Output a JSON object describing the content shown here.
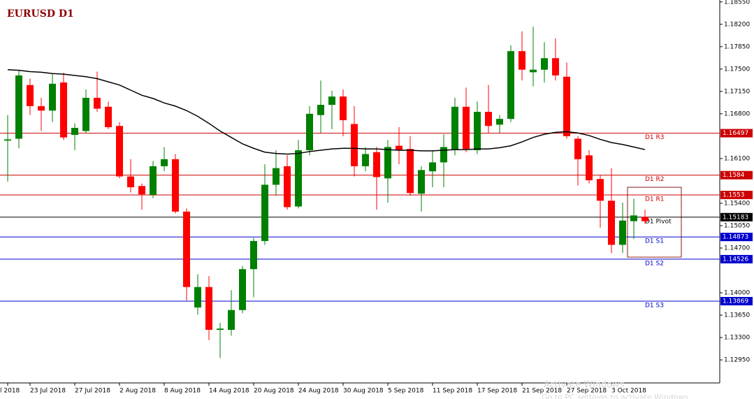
{
  "chart_data": {
    "type": "candlestick",
    "title": "EURUSD D1",
    "up_color": "#008000",
    "down_color": "#ff0000",
    "categories": [
      "l 2018",
      null,
      "23 Jul 2018",
      null,
      null,
      null,
      "27 Jul 2018",
      null,
      null,
      null,
      "2 Aug 2018",
      null,
      null,
      null,
      "8 Aug 2018",
      null,
      null,
      null,
      "14 Aug 2018",
      null,
      null,
      null,
      "20 Aug 2018",
      null,
      null,
      null,
      "24 Aug 2018",
      null,
      null,
      null,
      "30 Aug 2018",
      null,
      null,
      null,
      "5 Sep 2018",
      null,
      null,
      null,
      "11 Sep 2018",
      null,
      null,
      null,
      "17 Sep 2018",
      null,
      null,
      null,
      "21 Sep 2018",
      null,
      null,
      null,
      "27 Sep 2018",
      null,
      null,
      null,
      "3 Oct 2018",
      null,
      null,
      null
    ],
    "open": [
      1.1638,
      1.1641,
      1.1725,
      1.1692,
      1.1685,
      1.1729,
      1.1647,
      1.1653,
      1.1705,
      1.1691,
      1.1661,
      1.1582,
      1.1567,
      1.1553,
      1.1598,
      1.1609,
      1.1527,
      1.1377,
      1.1409,
      1.1342,
      1.1342,
      1.1373,
      1.1437,
      1.1481,
      1.1569,
      1.1598,
      1.1535,
      1.1623,
      1.1678,
      1.1694,
      1.1707,
      1.1664,
      1.1598,
      1.162,
      1.1579,
      1.163,
      1.1625,
      1.1555,
      1.159,
      1.1604,
      1.1623,
      1.1691,
      1.1623,
      1.1683,
      1.1663,
      1.1672,
      1.1778,
      1.1745,
      1.1749,
      1.1767,
      1.1738,
      1.1641,
      1.1615,
      1.1578,
      1.1544,
      1.1475,
      1.1512,
      1.1519
    ],
    "high": [
      1.1678,
      1.1749,
      1.1735,
      1.1705,
      1.1743,
      1.1744,
      1.1665,
      1.1718,
      1.1746,
      1.1699,
      1.1667,
      1.1609,
      1.1571,
      1.1606,
      1.1628,
      1.1617,
      1.1532,
      1.1429,
      1.1426,
      1.1353,
      1.1404,
      1.1442,
      1.1486,
      1.1601,
      1.1623,
      1.1615,
      1.1639,
      1.1692,
      1.1732,
      1.1716,
      1.1718,
      1.1692,
      1.1628,
      1.1628,
      1.1639,
      1.1659,
      1.1645,
      1.1598,
      1.1623,
      1.1648,
      1.1705,
      1.1721,
      1.1699,
      1.1725,
      1.1678,
      1.1787,
      1.1809,
      1.1816,
      1.1792,
      1.1798,
      1.176,
      1.1645,
      1.1623,
      1.1584,
      1.1595,
      1.1541,
      1.1547,
      1.153
    ],
    "low": [
      1.1574,
      1.1626,
      1.1678,
      1.1653,
      1.1667,
      1.1639,
      1.1623,
      1.165,
      1.1683,
      1.1656,
      1.1579,
      1.1557,
      1.153,
      1.1548,
      1.159,
      1.1524,
      1.1388,
      1.1366,
      1.1326,
      1.1298,
      1.1333,
      1.1368,
      1.1393,
      1.1475,
      1.1552,
      1.153,
      1.1532,
      1.1615,
      1.165,
      1.1656,
      1.1645,
      1.1582,
      1.159,
      1.153,
      1.1541,
      1.1601,
      1.1552,
      1.1527,
      1.1565,
      1.1565,
      1.1615,
      1.162,
      1.1617,
      1.165,
      1.165,
      1.1667,
      1.1732,
      1.1723,
      1.1729,
      1.1732,
      1.1641,
      1.1568,
      1.1571,
      1.1502,
      1.1462,
      1.1462,
      1.1484,
      1.1508
    ],
    "close": [
      1.164,
      1.174,
      1.1692,
      1.1685,
      1.1727,
      1.1643,
      1.1658,
      1.1705,
      1.1688,
      1.1659,
      1.1582,
      1.1565,
      1.1554,
      1.1598,
      1.1609,
      1.1527,
      1.1409,
      1.1409,
      1.1342,
      1.1344,
      1.1373,
      1.1437,
      1.1481,
      1.1569,
      1.1595,
      1.1534,
      1.1623,
      1.168,
      1.1694,
      1.1707,
      1.167,
      1.1598,
      1.1617,
      1.1581,
      1.1628,
      1.1623,
      1.1556,
      1.1592,
      1.1604,
      1.1628,
      1.1691,
      1.1625,
      1.1683,
      1.1661,
      1.1672,
      1.1778,
      1.1749,
      1.1749,
      1.1767,
      1.174,
      1.1645,
      1.1609,
      1.1576,
      1.1544,
      1.1475,
      1.1513,
      1.1521,
      1.1512
    ],
    "ma": {
      "color": "#000000",
      "values": [
        1.1749,
        1.1748,
        1.1746,
        1.1745,
        1.1743,
        1.1742,
        1.174,
        1.1738,
        1.1735,
        1.173,
        1.1725,
        1.1717,
        1.1709,
        1.1704,
        1.1697,
        1.1692,
        1.1685,
        1.1676,
        1.1665,
        1.1653,
        1.1643,
        1.1633,
        1.1626,
        1.162,
        1.1618,
        1.1617,
        1.1618,
        1.1621,
        1.1623,
        1.1625,
        1.1626,
        1.1626,
        1.1625,
        1.1625,
        1.1624,
        1.1623,
        1.1623,
        1.1622,
        1.1622,
        1.1623,
        1.1624,
        1.1624,
        1.1625,
        1.1625,
        1.1627,
        1.163,
        1.1636,
        1.1643,
        1.1648,
        1.1651,
        1.1652,
        1.165,
        1.1646,
        1.164,
        1.1635,
        1.1632,
        1.1628,
        1.1624
      ]
    },
    "levels": [
      {
        "name": "D1 R3",
        "value": 1.16497,
        "color": "#cc0000"
      },
      {
        "name": "D1 R2",
        "value": 1.1584,
        "color": "#cc0000"
      },
      {
        "name": "D1 R1",
        "value": 1.1553,
        "color": "#cc0000"
      },
      {
        "name": "D1 Pivot",
        "value": 1.15183,
        "color": "#000000"
      },
      {
        "name": "D1 S1",
        "value": 1.14873,
        "color": "#0000cc"
      },
      {
        "name": "D1 S2",
        "value": 1.14526,
        "color": "#0000cc"
      },
      {
        "name": "D1 S3",
        "value": 1.13869,
        "color": "#0000cc"
      }
    ],
    "ylim": [
      1.1259,
      1.1858
    ],
    "yticks": [
      {
        "value": 1.1855,
        "label": "1.18550"
      },
      {
        "value": 1.182,
        "label": "1.18200"
      },
      {
        "value": 1.1785,
        "label": "1.17850"
      },
      {
        "value": 1.175,
        "label": "1.17500"
      },
      {
        "value": 1.1715,
        "label": "1.17150"
      },
      {
        "value": 1.168,
        "label": "1.16800"
      },
      {
        "value": 1.161,
        "label": "1.16100"
      },
      {
        "value": 1.154,
        "label": "1.15400"
      },
      {
        "value": 1.1505,
        "label": "1.15050"
      },
      {
        "value": 1.147,
        "label": "1.14700"
      },
      {
        "value": 1.14,
        "label": "1.14000"
      },
      {
        "value": 1.1365,
        "label": "1.13650"
      },
      {
        "value": 1.133,
        "label": "1.13300"
      },
      {
        "value": 1.1295,
        "label": "1.12950"
      }
    ],
    "watermark": [
      "Activate Windows",
      "Go to PC settings to activate Windows"
    ]
  }
}
